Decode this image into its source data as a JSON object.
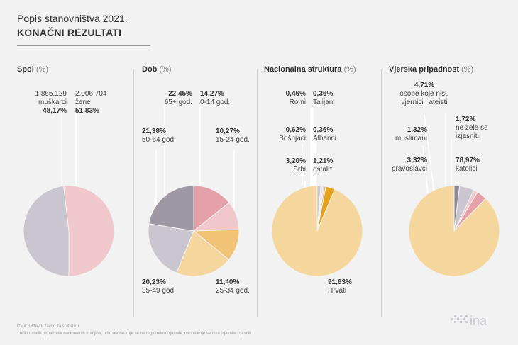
{
  "header": {
    "title": "Popis stanovništva 2021.",
    "subtitle": "KONAČNI REZULTATI"
  },
  "unit": "(%)",
  "colors": {
    "light_pink": "#f0c8cb",
    "grey_lilac": "#c9c6cf",
    "rose": "#e4a2a8",
    "dark_grey": "#9e98a4",
    "pale_yellow": "#f5d79e",
    "orange": "#f2c276",
    "amber": "#e3a21a",
    "slate": "#8c8898"
  },
  "chart_data": [
    {
      "type": "pie",
      "title": "Spol",
      "unit": "%",
      "slices": [
        {
          "label": "muškarci",
          "count": "1.865.129",
          "value": 48.17,
          "color": "#c9c6cf"
        },
        {
          "label": "žene",
          "count": "2.006.704",
          "value": 51.83,
          "color": "#f0c8cb"
        }
      ]
    },
    {
      "type": "pie",
      "title": "Dob",
      "unit": "%",
      "slices": [
        {
          "label": "0-14 god.",
          "value": 14.27,
          "color": "#e4a2a8"
        },
        {
          "label": "15-24 god.",
          "value": 10.27,
          "color": "#f0c8cb"
        },
        {
          "label": "25-34 god.",
          "value": 11.4,
          "color": "#f2c276"
        },
        {
          "label": "35-49 god.",
          "value": 20.23,
          "color": "#f5d79e"
        },
        {
          "label": "50-64 god.",
          "value": 21.38,
          "color": "#c9c6cf"
        },
        {
          "label": "65+ god.",
          "value": 22.45,
          "color": "#9e98a4"
        }
      ]
    },
    {
      "type": "pie",
      "title": "Nacionalna struktura",
      "unit": "%",
      "slices": [
        {
          "label": "Hrvati",
          "value": 91.63,
          "color": "#f5d79e"
        },
        {
          "label": "Srbi",
          "value": 3.2,
          "color": "#e3a21a"
        },
        {
          "label": "Bošnjaci",
          "value": 0.62,
          "color": "#e8b86a"
        },
        {
          "label": "Romi",
          "value": 0.46,
          "color": "#f0c8cb"
        },
        {
          "label": "Talijani",
          "value": 0.36,
          "color": "#e4a2a8"
        },
        {
          "label": "Albanci",
          "value": 0.36,
          "color": "#d8d5dc"
        },
        {
          "label": "ostali*",
          "value": 1.21,
          "color": "#c9c6cf"
        }
      ]
    },
    {
      "type": "pie",
      "title": "Vjerska pripadnost",
      "unit": "%",
      "slices": [
        {
          "label": "katolici",
          "value": 78.97,
          "color": "#f5d79e"
        },
        {
          "label": "pravoslavci",
          "value": 3.32,
          "color": "#e4a2a8"
        },
        {
          "label": "muslimani",
          "value": 1.32,
          "color": "#f0c8cb"
        },
        {
          "label": "osobe koje nisu vjernici i ateisti",
          "value": 4.71,
          "color": "#c9c6cf"
        },
        {
          "label": "ne žele se izjasniti",
          "value": 1.72,
          "color": "#8c8898"
        }
      ]
    }
  ],
  "labels": {
    "spol": {
      "m_count": "1.865.129",
      "m_name": "muškarci",
      "m_pct": "48,17%",
      "z_count": "2.006.704",
      "z_name": "žene",
      "z_pct": "51,83%"
    },
    "dob": {
      "g65_v": "22,45%",
      "g65_n": "65+ god.",
      "g0_v": "14,27%",
      "g0_n": "0-14 god.",
      "g50_v": "21,38%",
      "g50_n": "50-64 god.",
      "g15_v": "10,27%",
      "g15_n": "15-24 god.",
      "g35_v": "20,23%",
      "g35_n": "35-49 god.",
      "g25_v": "11,40%",
      "g25_n": "25-34 god."
    },
    "nac": {
      "romi_v": "0,46%",
      "romi_n": "Romi",
      "tal_v": "0,36%",
      "tal_n": "Talijani",
      "bos_v": "0,62%",
      "bos_n": "Bošnjaci",
      "alb_v": "0,36%",
      "alb_n": "Albanci",
      "srbi_v": "3,20%",
      "srbi_n": "Srbi",
      "ost_v": "1,21%",
      "ost_n": "ostali*",
      "hrv_v": "91,63%",
      "hrv_n": "Hrvati"
    },
    "vje": {
      "ate_v": "4,71%",
      "ate_n1": "osobe koje nisu",
      "ate_n2": "vjernici i ateisti",
      "mus_v": "1,32%",
      "mus_n": "muslimani",
      "nez_v": "1,72%",
      "nez_n1": "ne žele se",
      "nez_n2": "izjasniti",
      "pra_v": "3,32%",
      "pra_n": "pravoslavci",
      "kat_v": "78,97%",
      "kat_n": "katolici"
    }
  },
  "footer": {
    "source": "Izvor: Državni zavod za statistiku",
    "note": "* udio ostalih pripadnika nacionalnih manjina, udio osoba koje se ne regionalno izjasnile, osobe koje se nisu izjasnile izjasnili",
    "logo_text": "ina"
  }
}
